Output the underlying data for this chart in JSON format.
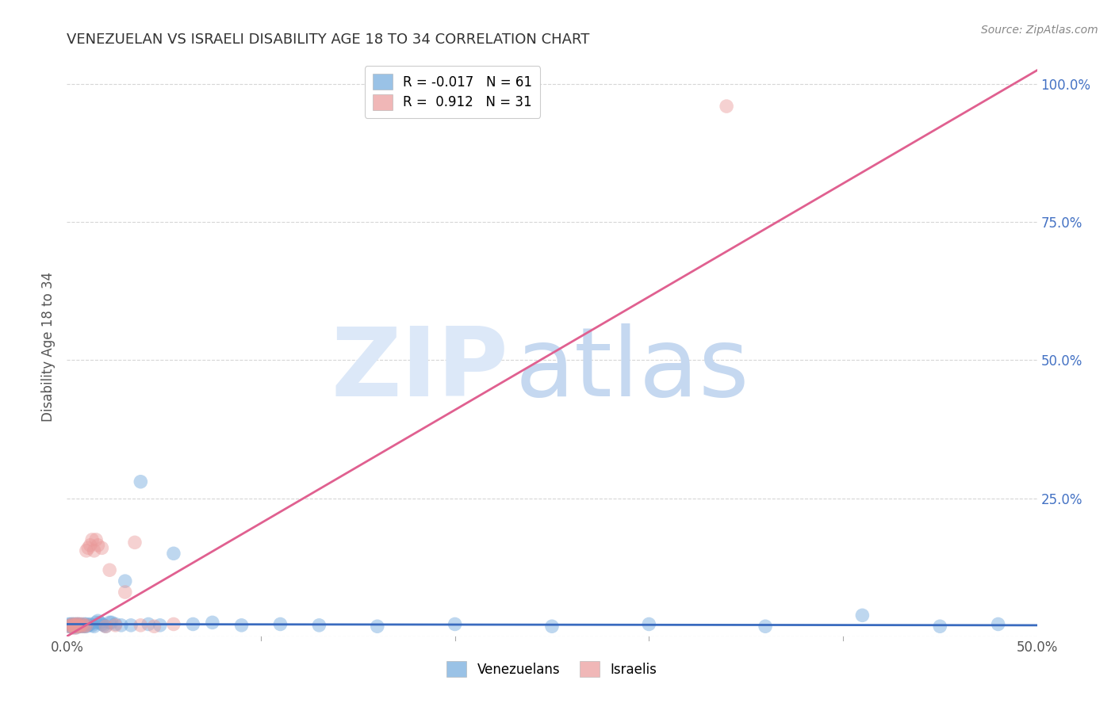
{
  "title": "VENEZUELAN VS ISRAELI DISABILITY AGE 18 TO 34 CORRELATION CHART",
  "source": "Source: ZipAtlas.com",
  "ylabel": "Disability Age 18 to 34",
  "xlim": [
    0.0,
    0.5
  ],
  "ylim": [
    0.0,
    1.05
  ],
  "venezuelan_R": "-0.017",
  "venezuelan_N": "61",
  "israeli_R": "0.912",
  "israeli_N": "31",
  "blue_color": "#6fa8dc",
  "pink_color": "#ea9999",
  "blue_line_color": "#3a6bbf",
  "pink_line_color": "#e06090",
  "watermark_zip_color": "#dce8f8",
  "watermark_atlas_color": "#c5d8f0",
  "background_color": "#ffffff",
  "grid_color": "#cccccc",
  "venezuelan_x": [
    0.001,
    0.001,
    0.002,
    0.002,
    0.002,
    0.003,
    0.003,
    0.003,
    0.003,
    0.004,
    0.004,
    0.004,
    0.005,
    0.005,
    0.005,
    0.005,
    0.006,
    0.006,
    0.006,
    0.007,
    0.007,
    0.007,
    0.008,
    0.008,
    0.009,
    0.009,
    0.01,
    0.01,
    0.011,
    0.012,
    0.013,
    0.014,
    0.015,
    0.016,
    0.017,
    0.018,
    0.019,
    0.02,
    0.022,
    0.023,
    0.025,
    0.028,
    0.03,
    0.033,
    0.038,
    0.042,
    0.048,
    0.055,
    0.065,
    0.075,
    0.09,
    0.11,
    0.13,
    0.16,
    0.2,
    0.25,
    0.3,
    0.36,
    0.41,
    0.45,
    0.48
  ],
  "venezuelan_y": [
    0.018,
    0.022,
    0.02,
    0.018,
    0.022,
    0.02,
    0.018,
    0.022,
    0.016,
    0.02,
    0.018,
    0.022,
    0.02,
    0.018,
    0.022,
    0.016,
    0.02,
    0.018,
    0.022,
    0.02,
    0.018,
    0.022,
    0.02,
    0.018,
    0.022,
    0.018,
    0.022,
    0.018,
    0.02,
    0.022,
    0.02,
    0.018,
    0.025,
    0.028,
    0.025,
    0.022,
    0.02,
    0.018,
    0.025,
    0.025,
    0.022,
    0.02,
    0.1,
    0.02,
    0.28,
    0.022,
    0.02,
    0.15,
    0.022,
    0.025,
    0.02,
    0.022,
    0.02,
    0.018,
    0.022,
    0.018,
    0.022,
    0.018,
    0.038,
    0.018,
    0.022
  ],
  "israeli_x": [
    0.001,
    0.002,
    0.003,
    0.003,
    0.004,
    0.004,
    0.005,
    0.005,
    0.006,
    0.006,
    0.007,
    0.008,
    0.009,
    0.01,
    0.01,
    0.011,
    0.012,
    0.013,
    0.014,
    0.015,
    0.016,
    0.018,
    0.02,
    0.022,
    0.025,
    0.03,
    0.035,
    0.038,
    0.045,
    0.055,
    0.34
  ],
  "israeli_y": [
    0.018,
    0.02,
    0.018,
    0.022,
    0.015,
    0.02,
    0.018,
    0.022,
    0.018,
    0.022,
    0.018,
    0.022,
    0.018,
    0.02,
    0.155,
    0.16,
    0.165,
    0.175,
    0.155,
    0.175,
    0.165,
    0.16,
    0.018,
    0.12,
    0.02,
    0.08,
    0.17,
    0.02,
    0.018,
    0.022,
    0.96
  ],
  "v_line_x": [
    0.0,
    0.5
  ],
  "v_line_y": [
    0.022,
    0.02
  ],
  "i_line_x": [
    0.0,
    0.5
  ],
  "i_line_y": [
    0.0,
    1.025
  ]
}
